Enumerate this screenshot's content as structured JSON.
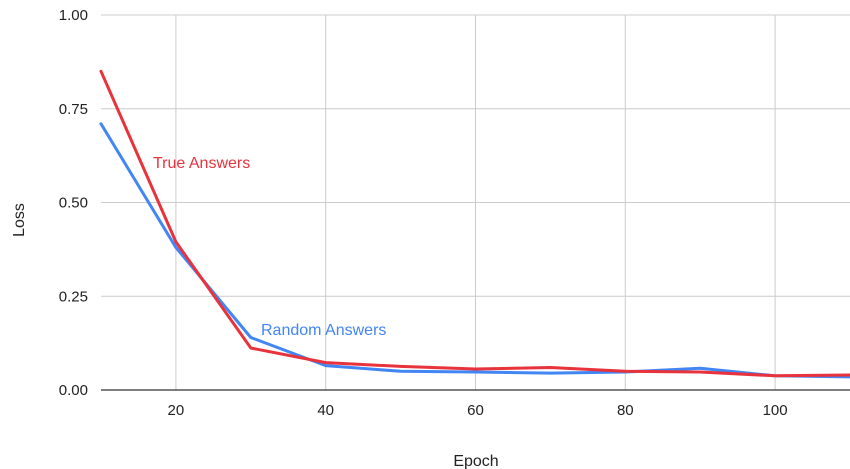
{
  "chart_data": {
    "type": "line",
    "xlabel": "Epoch",
    "ylabel": "Loss",
    "xlim": [
      10,
      110
    ],
    "ylim": [
      0,
      1
    ],
    "x_ticks": [
      20,
      40,
      60,
      80,
      100
    ],
    "y_ticks": [
      0,
      0.25,
      0.5,
      0.75,
      1.0
    ],
    "y_tick_labels": [
      "0.00",
      "0.25",
      "0.50",
      "0.75",
      "1.00"
    ],
    "grid": true,
    "legend": "inline",
    "series": [
      {
        "name": "Random Answers",
        "color": "#4285f4",
        "x": [
          10,
          20,
          30,
          40,
          50,
          60,
          70,
          80,
          90,
          100,
          110
        ],
        "y": [
          0.71,
          0.38,
          0.14,
          0.065,
          0.05,
          0.048,
          0.045,
          0.048,
          0.058,
          0.038,
          0.035
        ]
      },
      {
        "name": "True Answers",
        "color": "#e8333c",
        "x": [
          10,
          20,
          30,
          40,
          50,
          60,
          70,
          80,
          90,
          100,
          110
        ],
        "y": [
          0.85,
          0.395,
          0.112,
          0.073,
          0.063,
          0.056,
          0.06,
          0.05,
          0.048,
          0.038,
          0.04
        ]
      }
    ]
  }
}
